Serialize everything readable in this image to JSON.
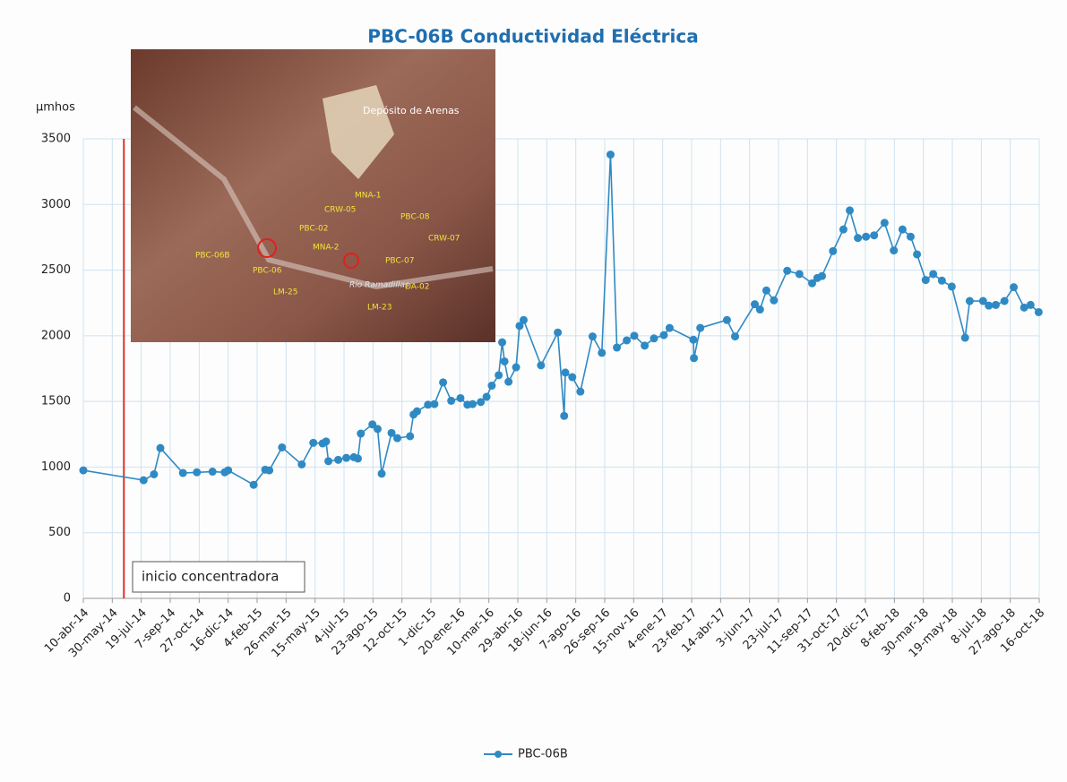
{
  "chart_data": {
    "type": "line",
    "title": "PBC-06B Conductividad Eléctrica",
    "y_label": "μmhos",
    "ylim": [
      0,
      3500
    ],
    "yticks": [
      0,
      500,
      1000,
      1500,
      2000,
      2500,
      3000,
      3500
    ],
    "xlim": [
      "2014-04-10",
      "2018-10-16"
    ],
    "xticks": [
      {
        "value": "2014-04-10",
        "label": "10-abr-14"
      },
      {
        "value": "2014-05-30",
        "label": "30-may-14"
      },
      {
        "value": "2014-07-19",
        "label": "19-jul-14"
      },
      {
        "value": "2014-09-07",
        "label": "7-sep-14"
      },
      {
        "value": "2014-10-27",
        "label": "27-oct-14"
      },
      {
        "value": "2014-12-16",
        "label": "16-dic-14"
      },
      {
        "value": "2015-02-04",
        "label": "4-feb-15"
      },
      {
        "value": "2015-03-26",
        "label": "26-mar-15"
      },
      {
        "value": "2015-05-15",
        "label": "15-may-15"
      },
      {
        "value": "2015-07-04",
        "label": "4-jul-15"
      },
      {
        "value": "2015-08-23",
        "label": "23-ago-15"
      },
      {
        "value": "2015-10-12",
        "label": "12-oct-15"
      },
      {
        "value": "2015-12-01",
        "label": "1-dic-15"
      },
      {
        "value": "2016-01-20",
        "label": "20-ene-16"
      },
      {
        "value": "2016-03-10",
        "label": "10-mar-16"
      },
      {
        "value": "2016-04-29",
        "label": "29-abr-16"
      },
      {
        "value": "2016-06-18",
        "label": "18-jun-16"
      },
      {
        "value": "2016-08-07",
        "label": "7-ago-16"
      },
      {
        "value": "2016-09-26",
        "label": "26-sep-16"
      },
      {
        "value": "2016-11-15",
        "label": "15-nov-16"
      },
      {
        "value": "2017-01-04",
        "label": "4-ene-17"
      },
      {
        "value": "2017-02-23",
        "label": "23-feb-17"
      },
      {
        "value": "2017-04-14",
        "label": "14-abr-17"
      },
      {
        "value": "2017-06-03",
        "label": "3-jun-17"
      },
      {
        "value": "2017-07-23",
        "label": "23-jul-17"
      },
      {
        "value": "2017-09-11",
        "label": "11-sep-17"
      },
      {
        "value": "2017-10-31",
        "label": "31-oct-17"
      },
      {
        "value": "2017-12-20",
        "label": "20-dic-17"
      },
      {
        "value": "2018-02-08",
        "label": "8-feb-18"
      },
      {
        "value": "2018-03-30",
        "label": "30-mar-18"
      },
      {
        "value": "2018-05-19",
        "label": "19-may-18"
      },
      {
        "value": "2018-07-08",
        "label": "8-jul-18"
      },
      {
        "value": "2018-08-27",
        "label": "27-ago-18"
      },
      {
        "value": "2018-10-16",
        "label": "16-oct-18"
      }
    ],
    "grid": true,
    "legend": "bottom",
    "x": [
      "2014-04-10",
      "2014-07-23",
      "2014-08-10",
      "2014-08-21",
      "2014-09-29",
      "2014-10-23",
      "2014-11-19",
      "2014-12-10",
      "2014-12-16",
      "2015-01-29",
      "2015-02-18",
      "2015-02-25",
      "2015-03-19",
      "2015-04-22",
      "2015-05-12",
      "2015-05-28",
      "2015-06-03",
      "2015-06-07",
      "2015-06-24",
      "2015-07-08",
      "2015-07-21",
      "2015-07-28",
      "2015-08-02",
      "2015-08-22",
      "2015-08-31",
      "2015-09-07",
      "2015-09-24",
      "2015-10-04",
      "2015-10-26",
      "2015-11-01",
      "2015-11-07",
      "2015-11-26",
      "2015-12-07",
      "2015-12-22",
      "2016-01-05",
      "2016-01-21",
      "2016-02-02",
      "2016-02-11",
      "2016-02-25",
      "2016-03-06",
      "2016-03-15",
      "2016-03-27",
      "2016-04-02",
      "2016-04-06",
      "2016-04-13",
      "2016-04-26",
      "2016-05-02",
      "2016-05-09",
      "2016-06-08",
      "2016-07-07",
      "2016-07-18",
      "2016-07-20",
      "2016-08-01",
      "2016-08-15",
      "2016-09-05",
      "2016-09-21",
      "2016-10-06",
      "2016-10-17",
      "2016-11-03",
      "2016-11-16",
      "2016-12-04",
      "2016-12-20",
      "2017-01-06",
      "2017-01-16",
      "2017-02-26",
      "2017-02-27",
      "2017-03-10",
      "2017-04-25",
      "2017-05-09",
      "2017-06-12",
      "2017-06-21",
      "2017-07-02",
      "2017-07-15",
      "2017-08-07",
      "2017-08-28",
      "2017-09-19",
      "2017-09-28",
      "2017-10-06",
      "2017-10-25",
      "2017-11-12",
      "2017-11-23",
      "2017-12-07",
      "2017-12-21",
      "2018-01-04",
      "2018-01-22",
      "2018-02-07",
      "2018-02-22",
      "2018-03-08",
      "2018-03-19",
      "2018-04-03",
      "2018-04-16",
      "2018-05-01",
      "2018-05-18",
      "2018-06-10",
      "2018-06-18",
      "2018-07-11",
      "2018-07-21",
      "2018-08-02",
      "2018-08-17",
      "2018-09-02",
      "2018-09-20",
      "2018-10-01",
      "2018-10-15"
    ],
    "series": [
      {
        "name": "PBC-06B",
        "color": "#2f8ac4",
        "values": [
          975,
          900,
          945,
          1145,
          955,
          960,
          965,
          960,
          975,
          865,
          980,
          975,
          1150,
          1020,
          1185,
          1180,
          1195,
          1045,
          1055,
          1070,
          1075,
          1065,
          1255,
          1325,
          1290,
          950,
          1260,
          1220,
          1235,
          1400,
          1425,
          1475,
          1480,
          1645,
          1505,
          1525,
          1475,
          1480,
          1495,
          1535,
          1620,
          1700,
          1950,
          1805,
          1650,
          1760,
          2075,
          2120,
          1775,
          2025,
          1390,
          1720,
          1685,
          1575,
          1995,
          1870,
          3380,
          1910,
          1965,
          2000,
          1925,
          1980,
          2005,
          2060,
          1970,
          1830,
          2060,
          2120,
          1995,
          2240,
          2200,
          2345,
          2270,
          2495,
          2470,
          2400,
          2440,
          2455,
          2645,
          2810,
          2955,
          2745,
          2755,
          2765,
          2860,
          2650,
          2810,
          2755,
          2620,
          2425,
          2470,
          2420,
          2375,
          1985,
          2265,
          2265,
          2230,
          2235,
          2265,
          2370,
          2215,
          2235,
          2180
        ]
      }
    ],
    "event": {
      "x": "2014-06-19",
      "label": "inicio concentradora",
      "color": "#e0302a"
    },
    "inset_labels": [
      "Depósito de Arenas",
      "PBC-06B",
      "PBC-06",
      "CRW-05",
      "MNA-1",
      "PBC-08",
      "PBC-02",
      "CRW-07",
      "MNA-2",
      "PBC-07",
      "LM-25",
      "Rio Ramadillas",
      "DA-02",
      "LM-23"
    ]
  }
}
